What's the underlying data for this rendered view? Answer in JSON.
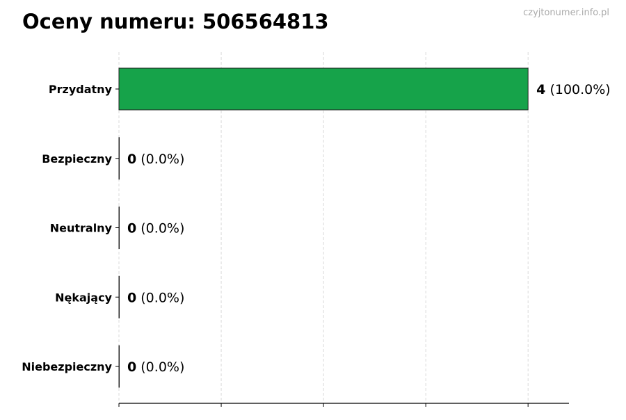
{
  "chart_data": {
    "type": "bar",
    "orientation": "horizontal",
    "title": "Oceny numeru: 506564813",
    "watermark": "czyjtonumer.info.pl",
    "categories": [
      "Przydatny",
      "Bezpieczny",
      "Neutralny",
      "Nękający",
      "Niebezpieczny"
    ],
    "values": [
      4,
      0,
      0,
      0,
      0
    ],
    "percent_labels": [
      "(100.0%)",
      "(0.0%)",
      "(0.0%)",
      "(0.0%)",
      "(0.0%)"
    ],
    "value_labels": [
      "4",
      "0",
      "0",
      "0",
      "0"
    ],
    "xlim": [
      0,
      4.4
    ],
    "xticks": [
      0,
      1,
      2,
      3,
      4
    ],
    "xtick_labels_shown": false,
    "grid": "x-dashed",
    "bar_color": "#16a34a",
    "legend": "none"
  }
}
